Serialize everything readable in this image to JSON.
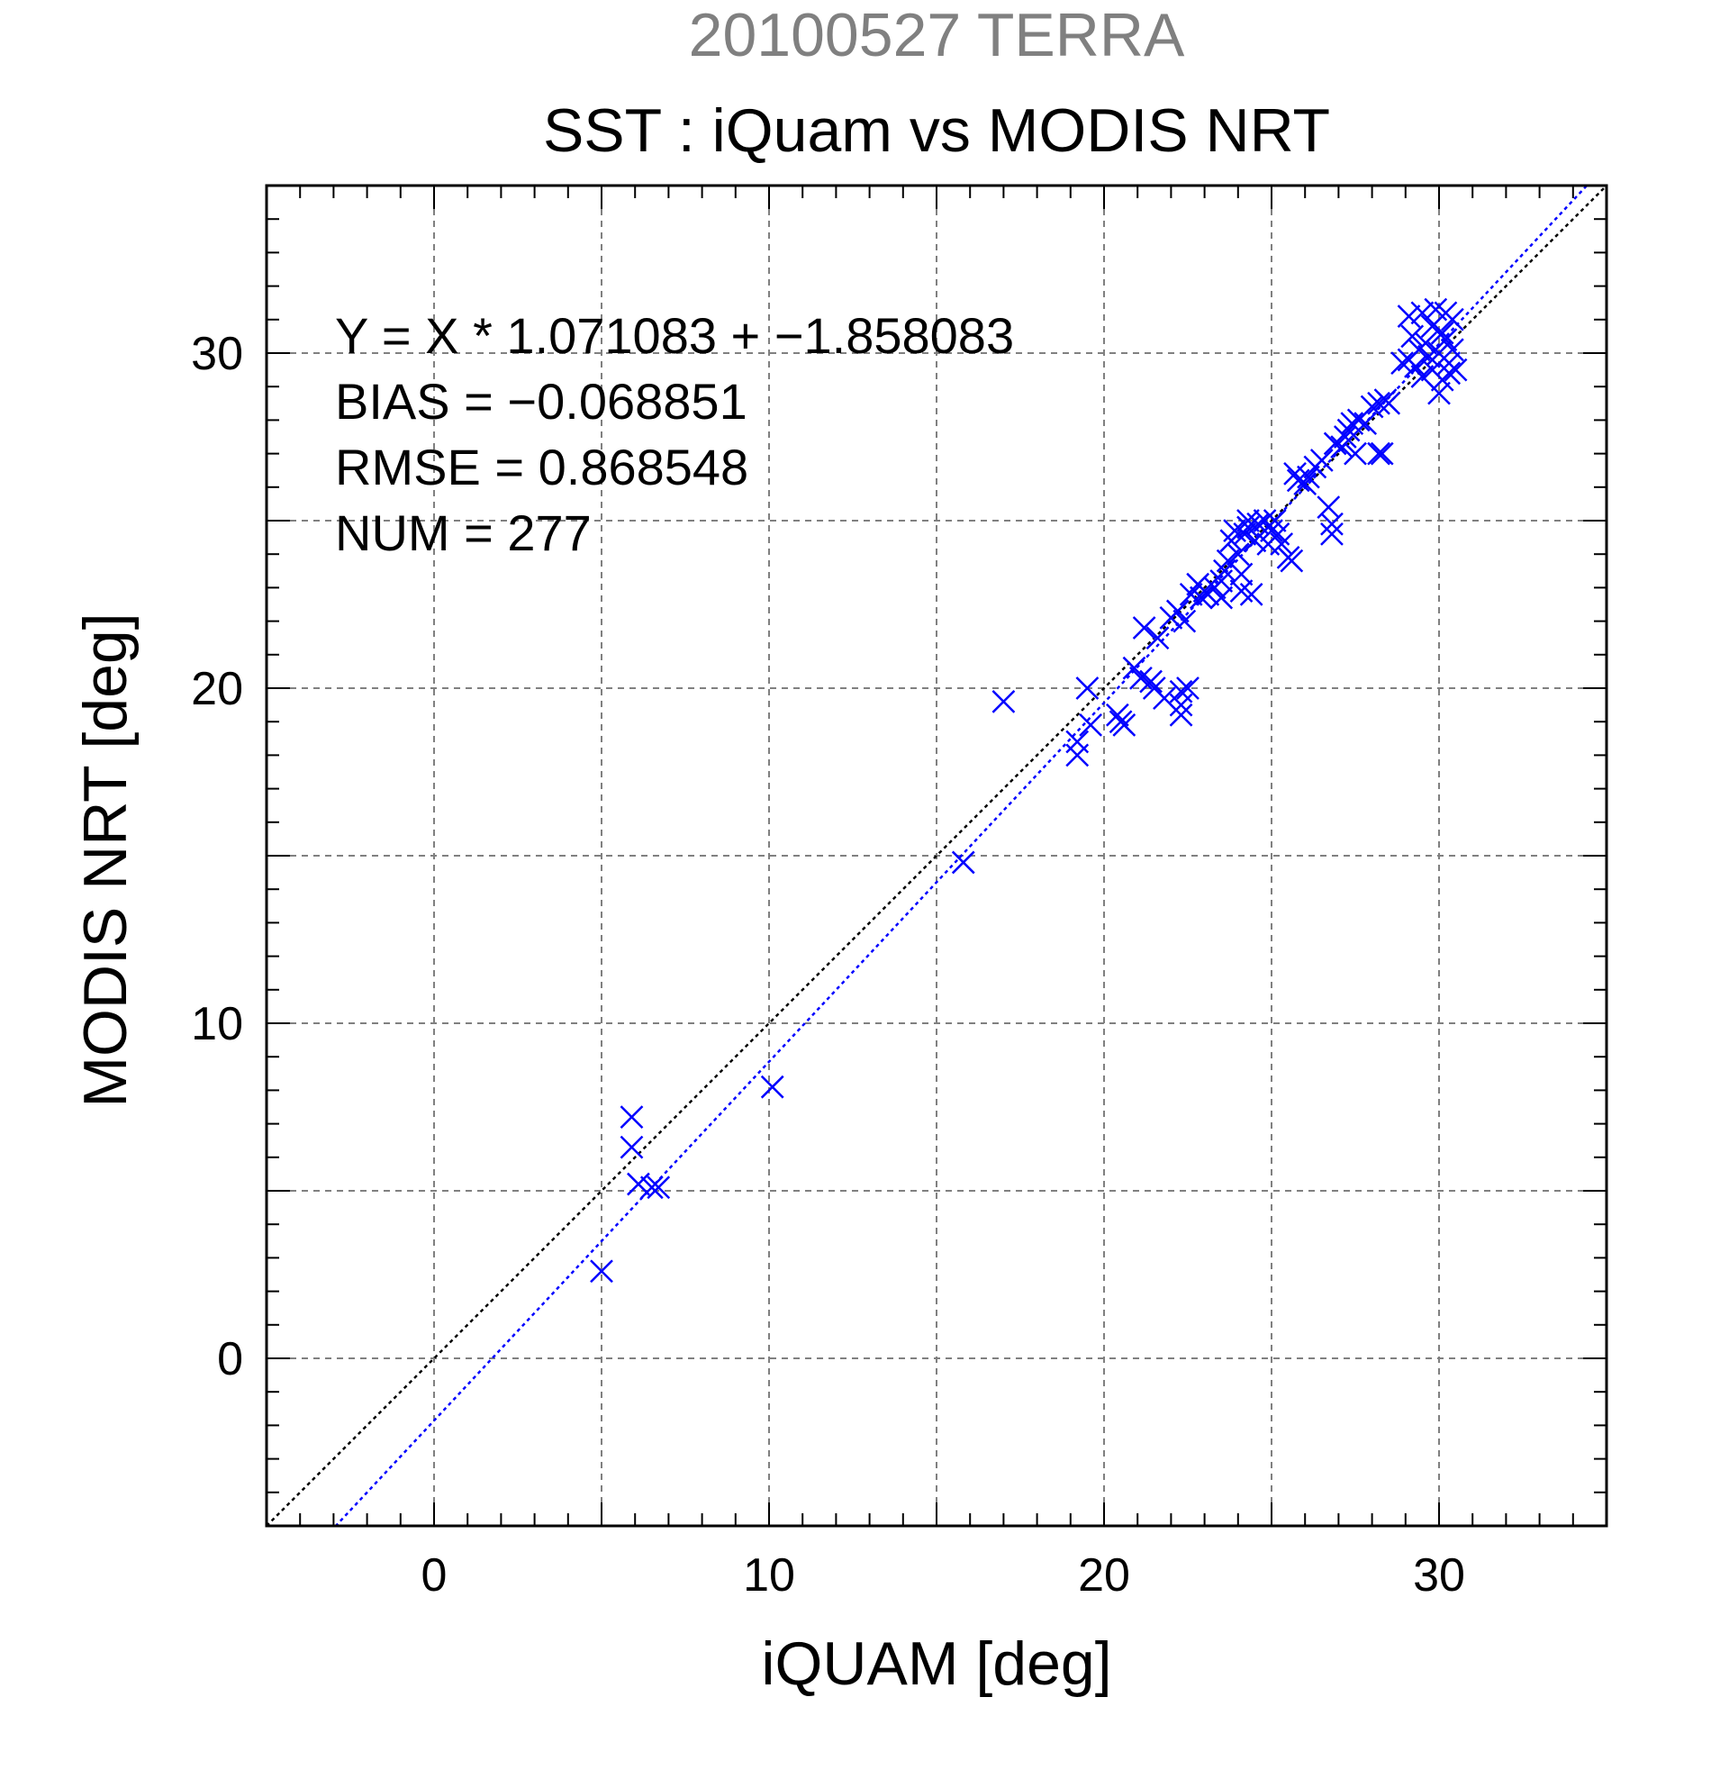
{
  "chart_data": {
    "type": "scatter",
    "title": "20100527 TERRA",
    "subtitle": "SST : iQuam vs MODIS NRT",
    "xlabel": "iQUAM [deg]",
    "ylabel": "MODIS NRT [deg]",
    "xlim": [
      -5,
      35
    ],
    "ylim": [
      -5,
      35
    ],
    "xticks": [
      0,
      10,
      20,
      30
    ],
    "yticks": [
      0,
      10,
      20,
      30
    ],
    "grid": true,
    "annotations": [
      "Y = X * 1.071083 + −1.858083",
      "BIAS = −0.068851",
      "RMSE = 0.868548",
      "NUM = 277"
    ],
    "fit_line": {
      "slope": 1.071083,
      "intercept": -1.858083
    },
    "identity_line": {
      "slope": 1,
      "intercept": 0
    },
    "colors": {
      "points": "#0000ff",
      "fit_line": "#0000ff",
      "identity_line": "#000000",
      "title": "#808080",
      "grid": "#808080"
    },
    "points": [
      [
        5.0,
        2.6
      ],
      [
        5.9,
        7.2
      ],
      [
        5.9,
        6.3
      ],
      [
        6.1,
        5.2
      ],
      [
        6.5,
        5.1
      ],
      [
        6.7,
        5.1
      ],
      [
        10.1,
        8.1
      ],
      [
        15.8,
        14.8
      ],
      [
        17.0,
        19.6
      ],
      [
        19.2,
        18.0
      ],
      [
        19.2,
        18.4
      ],
      [
        19.5,
        20.0
      ],
      [
        19.6,
        18.9
      ],
      [
        20.4,
        19.2
      ],
      [
        20.5,
        19.0
      ],
      [
        20.6,
        18.9
      ],
      [
        20.9,
        20.6
      ],
      [
        21.1,
        20.3
      ],
      [
        21.4,
        20.2
      ],
      [
        21.5,
        20.0
      ],
      [
        21.2,
        21.8
      ],
      [
        21.6,
        21.5
      ],
      [
        21.8,
        19.7
      ],
      [
        22.0,
        22.1
      ],
      [
        22.2,
        22.3
      ],
      [
        22.3,
        19.9
      ],
      [
        22.3,
        19.5
      ],
      [
        22.3,
        19.2
      ],
      [
        22.5,
        20.0
      ],
      [
        22.4,
        22.0
      ],
      [
        22.6,
        22.8
      ],
      [
        22.8,
        23.1
      ],
      [
        22.9,
        22.7
      ],
      [
        23.0,
        22.9
      ],
      [
        23.1,
        22.8
      ],
      [
        23.3,
        23.0
      ],
      [
        23.5,
        23.2
      ],
      [
        23.5,
        22.7
      ],
      [
        23.6,
        23.5
      ],
      [
        23.7,
        23.8
      ],
      [
        23.8,
        24.4
      ],
      [
        23.9,
        24.7
      ],
      [
        24.0,
        24.0
      ],
      [
        24.1,
        23.4
      ],
      [
        24.1,
        22.9
      ],
      [
        24.2,
        24.6
      ],
      [
        24.3,
        25.0
      ],
      [
        24.3,
        24.8
      ],
      [
        24.4,
        22.8
      ],
      [
        24.5,
        24.4
      ],
      [
        24.6,
        24.9
      ],
      [
        24.8,
        25.0
      ],
      [
        24.9,
        24.3
      ],
      [
        25.0,
        24.7
      ],
      [
        25.1,
        25.0
      ],
      [
        25.2,
        24.6
      ],
      [
        25.3,
        24.3
      ],
      [
        25.5,
        23.9
      ],
      [
        25.6,
        23.8
      ],
      [
        25.7,
        26.4
      ],
      [
        25.8,
        26.2
      ],
      [
        26.0,
        26.1
      ],
      [
        26.1,
        26.3
      ],
      [
        26.3,
        26.6
      ],
      [
        26.5,
        26.8
      ],
      [
        26.7,
        25.4
      ],
      [
        26.8,
        24.9
      ],
      [
        26.8,
        24.6
      ],
      [
        26.9,
        27.3
      ],
      [
        27.1,
        27.2
      ],
      [
        27.2,
        27.5
      ],
      [
        27.3,
        27.7
      ],
      [
        27.4,
        27.9
      ],
      [
        27.5,
        27.0
      ],
      [
        27.6,
        28.0
      ],
      [
        27.8,
        27.9
      ],
      [
        28.0,
        28.4
      ],
      [
        28.2,
        28.5
      ],
      [
        28.2,
        27.0
      ],
      [
        28.3,
        27.0
      ],
      [
        28.4,
        28.6
      ],
      [
        28.5,
        28.5
      ],
      [
        28.9,
        29.7
      ],
      [
        29.1,
        29.8
      ],
      [
        29.1,
        31.1
      ],
      [
        29.2,
        30.5
      ],
      [
        29.3,
        29.6
      ],
      [
        29.4,
        30.1
      ],
      [
        29.5,
        31.2
      ],
      [
        29.5,
        29.3
      ],
      [
        29.6,
        30.3
      ],
      [
        29.7,
        29.9
      ],
      [
        29.8,
        30.8
      ],
      [
        29.8,
        29.5
      ],
      [
        29.9,
        31.3
      ],
      [
        30.0,
        30.0
      ],
      [
        30.0,
        28.8
      ],
      [
        30.1,
        29.2
      ],
      [
        30.1,
        30.6
      ],
      [
        30.2,
        30.4
      ],
      [
        30.2,
        31.2
      ],
      [
        30.3,
        29.7
      ],
      [
        30.3,
        29.4
      ],
      [
        30.4,
        31.0
      ],
      [
        30.4,
        30.1
      ],
      [
        30.5,
        29.5
      ]
    ]
  }
}
